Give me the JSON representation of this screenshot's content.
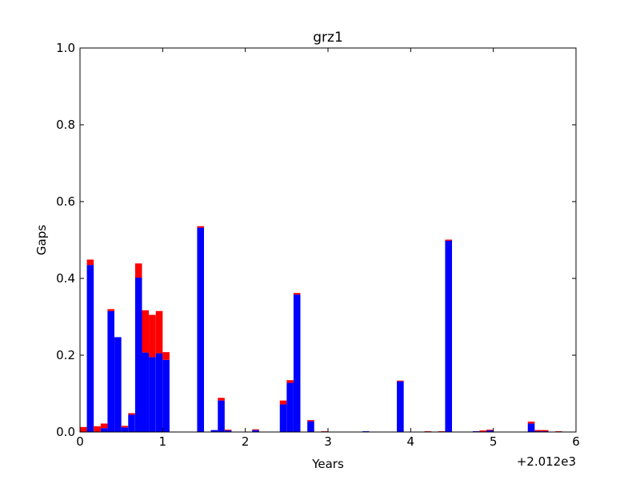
{
  "chart_data": {
    "type": "bar",
    "title": "grz1",
    "xlabel": "Years",
    "ylabel": "Gaps",
    "x_offset_label": "+2.012e3",
    "xlim": [
      0,
      6
    ],
    "ylim": [
      0,
      1
    ],
    "x_ticks": [
      0,
      1,
      2,
      3,
      4,
      5,
      6
    ],
    "x_tick_labels": [
      "0",
      "1",
      "2",
      "3",
      "4",
      "5",
      "6"
    ],
    "y_ticks": [
      0,
      0.2,
      0.4,
      0.6,
      0.8,
      1.0
    ],
    "y_tick_labels": [
      "0.0",
      "0.2",
      "0.4",
      "0.6",
      "0.8",
      "1.0"
    ],
    "grid": false,
    "stacked": true,
    "bin_width": 0.083,
    "x": [
      0.0,
      0.083,
      0.167,
      0.25,
      0.333,
      0.417,
      0.5,
      0.583,
      0.667,
      0.75,
      0.833,
      0.917,
      1.0,
      1.083,
      1.167,
      1.25,
      1.333,
      1.417,
      1.5,
      1.583,
      1.667,
      1.75,
      1.833,
      1.917,
      2.0,
      2.083,
      2.167,
      2.25,
      2.333,
      2.417,
      2.5,
      2.583,
      2.667,
      2.75,
      2.833,
      2.917,
      3.0,
      3.083,
      3.167,
      3.25,
      3.333,
      3.417,
      3.5,
      3.583,
      3.667,
      3.75,
      3.833,
      3.917,
      4.0,
      4.083,
      4.167,
      4.25,
      4.333,
      4.417,
      4.5,
      4.583,
      4.667,
      4.75,
      4.833,
      4.917,
      5.0,
      5.083,
      5.167,
      5.25,
      5.333,
      5.417,
      5.5,
      5.583,
      5.667,
      5.75
    ],
    "series": [
      {
        "color": "#0000ff",
        "values": [
          0.0,
          0.435,
          0.0,
          0.01,
          0.315,
          0.247,
          0.012,
          0.045,
          0.402,
          0.207,
          0.195,
          0.205,
          0.188,
          0.0,
          0.0,
          0.0,
          0.0,
          0.532,
          0.0,
          0.005,
          0.082,
          0.004,
          0.0,
          0.0,
          0.0,
          0.005,
          0.0,
          0.0,
          0.0,
          0.072,
          0.128,
          0.358,
          0.0,
          0.028,
          0.0,
          0.0,
          0.0,
          0.0,
          0.0,
          0.0,
          0.0,
          0.002,
          0.0,
          0.0,
          0.0,
          0.0,
          0.132,
          0.0,
          0.0,
          0.0,
          0.0,
          0.0,
          0.0,
          0.498,
          0.0,
          0.0,
          0.0,
          0.002,
          0.0,
          0.004,
          0.0,
          0.0,
          0.0,
          0.0,
          0.0,
          0.022,
          0.002,
          0.002,
          0.0,
          0.0
        ]
      },
      {
        "color": "#ff0000",
        "values": [
          0.013,
          0.014,
          0.015,
          0.012,
          0.005,
          0.0,
          0.004,
          0.004,
          0.037,
          0.11,
          0.11,
          0.11,
          0.02,
          0.0,
          0.0,
          0.0,
          0.0,
          0.004,
          0.0,
          0.0,
          0.007,
          0.002,
          0.0,
          0.0,
          0.0,
          0.002,
          0.0,
          0.0,
          0.0,
          0.01,
          0.007,
          0.004,
          0.0,
          0.003,
          0.0,
          0.002,
          0.0,
          0.0,
          0.0,
          0.0,
          0.0,
          0.0,
          0.0,
          0.0,
          0.0,
          0.0,
          0.002,
          0.0,
          0.0,
          0.0,
          0.002,
          0.0,
          0.002,
          0.003,
          0.0,
          0.0,
          0.0,
          0.0,
          0.004,
          0.002,
          0.0,
          0.0,
          0.0,
          0.0,
          0.0,
          0.005,
          0.003,
          0.003,
          0.0,
          0.002
        ]
      }
    ]
  }
}
